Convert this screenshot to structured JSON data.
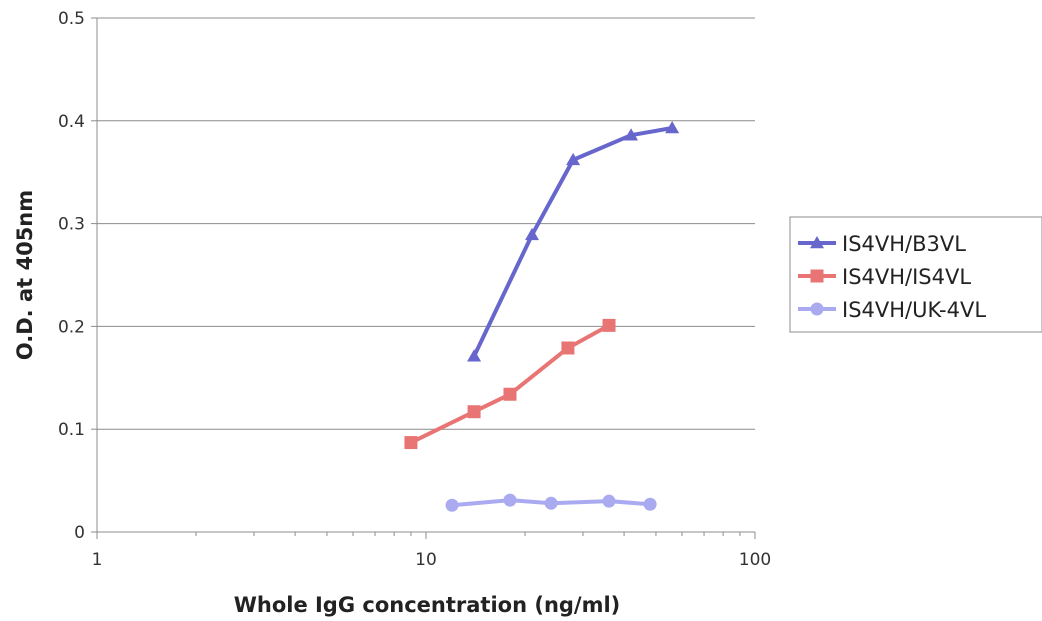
{
  "chart_data": {
    "type": "line",
    "xlabel": "Whole IgG concentration (ng/ml)",
    "ylabel": "O.D. at 405nm",
    "xscale": "log",
    "xlim": [
      1,
      100
    ],
    "ylim": [
      0,
      0.5
    ],
    "x_ticks": [
      {
        "value": 1,
        "label": "1"
      },
      {
        "value": 10,
        "label": "10"
      },
      {
        "value": 100,
        "label": "100"
      }
    ],
    "y_ticks": [
      {
        "value": 0,
        "label": "0"
      },
      {
        "value": 0.1,
        "label": "0.1"
      },
      {
        "value": 0.2,
        "label": "0.2"
      },
      {
        "value": 0.3,
        "label": "0.3"
      },
      {
        "value": 0.4,
        "label": "0.4"
      },
      {
        "value": 0.5,
        "label": "0.5"
      }
    ],
    "grid": "horizontal",
    "legend_position": "right",
    "series": [
      {
        "name": "IS4VH/B3VL",
        "color": "#6666cc",
        "marker": "triangle",
        "x": [
          14,
          21,
          28,
          42,
          56
        ],
        "y": [
          0.171,
          0.289,
          0.362,
          0.386,
          0.393
        ]
      },
      {
        "name": "IS4VH/IS4VL",
        "color": "#e87474",
        "marker": "square",
        "x": [
          9,
          14,
          18,
          27,
          36
        ],
        "y": [
          0.087,
          0.117,
          0.134,
          0.179,
          0.201
        ]
      },
      {
        "name": "IS4VH/UK-4VL",
        "color": "#aaaaf0",
        "marker": "circle",
        "x": [
          12,
          18,
          24,
          36,
          48
        ],
        "y": [
          0.026,
          0.031,
          0.028,
          0.03,
          0.027
        ]
      }
    ]
  }
}
